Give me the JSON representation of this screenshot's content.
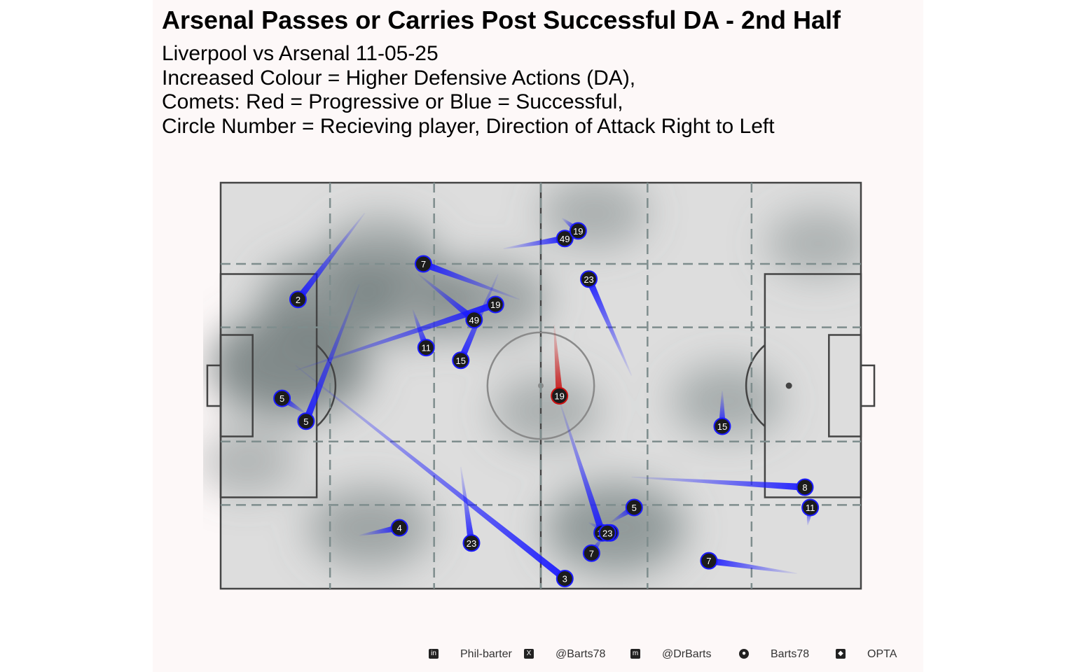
{
  "chart_data": {
    "type": "scatter",
    "title": "Arsenal Passes or Carries Post Successful DA - 2nd Half",
    "subtitle_lines": [
      "Liverpool vs Arsenal 11-05-25",
      "Increased Colour = Higher Defensive Actions (DA),",
      "Comets: Red = Progressive or Blue = Successful,",
      "Circle Number = Recieving player, Direction of Attack Right to Left"
    ],
    "xlim": [
      0,
      120
    ],
    "ylim": [
      0,
      80
    ],
    "colors": {
      "successful": "#1a1aff",
      "progressive": "#cc1111",
      "pitch": "#dddddd",
      "density": "#6b7777",
      "background": "#fdf8f8"
    },
    "density_centers": [
      {
        "x": 13,
        "y": 44,
        "w": 1.0
      },
      {
        "x": 20,
        "y": 57,
        "w": 0.7
      },
      {
        "x": 35,
        "y": 57,
        "w": 0.6
      },
      {
        "x": 50,
        "y": 57,
        "w": 0.55
      },
      {
        "x": 30,
        "y": 66,
        "w": 0.45
      },
      {
        "x": 70,
        "y": 74,
        "w": 0.35
      },
      {
        "x": 61,
        "y": 35,
        "w": 0.35
      },
      {
        "x": 74,
        "y": 12,
        "w": 0.75
      },
      {
        "x": 28,
        "y": 12,
        "w": 0.55
      },
      {
        "x": 95,
        "y": 37,
        "w": 0.4
      },
      {
        "x": 112,
        "y": 68,
        "w": 0.3
      },
      {
        "x": 5,
        "y": 25,
        "w": 0.25
      }
    ],
    "comets": [
      {
        "x": 14.5,
        "y": 57,
        "x2": 27,
        "y2": 74,
        "type": "successful",
        "label": "2"
      },
      {
        "x": 38,
        "y": 64,
        "x2": 56,
        "y2": 57,
        "type": "successful",
        "label": "7"
      },
      {
        "x": 51.5,
        "y": 56,
        "x2": 14,
        "y2": 43,
        "type": "successful",
        "label": "19"
      },
      {
        "x": 47.5,
        "y": 53,
        "x2": 37,
        "y2": 62,
        "type": "successful",
        "label": "49"
      },
      {
        "x": 38.5,
        "y": 47.5,
        "x2": 36,
        "y2": 55,
        "type": "successful",
        "label": "11"
      },
      {
        "x": 45,
        "y": 45,
        "x2": 52,
        "y2": 62,
        "type": "successful",
        "label": "15"
      },
      {
        "x": 11.5,
        "y": 37.5,
        "x2": 16,
        "y2": 34.5,
        "type": "successful",
        "label": "5"
      },
      {
        "x": 16,
        "y": 33,
        "x2": 26,
        "y2": 60,
        "type": "successful",
        "label": "5"
      },
      {
        "x": 33.5,
        "y": 12,
        "x2": 26,
        "y2": 10.5,
        "type": "successful",
        "label": "4"
      },
      {
        "x": 47,
        "y": 9,
        "x2": 45,
        "y2": 24,
        "type": "successful",
        "label": "23"
      },
      {
        "x": 64.5,
        "y": 2,
        "x2": 14,
        "y2": 44,
        "type": "successful",
        "label": "3"
      },
      {
        "x": 64.5,
        "y": 69,
        "x2": 53,
        "y2": 67,
        "type": "successful",
        "label": "49"
      },
      {
        "x": 67,
        "y": 70.5,
        "x2": 64,
        "y2": 73,
        "type": "successful",
        "label": "19"
      },
      {
        "x": 69,
        "y": 61,
        "x2": 77,
        "y2": 42,
        "type": "successful",
        "label": "23"
      },
      {
        "x": 63.5,
        "y": 38,
        "x2": 62.5,
        "y2": 52,
        "type": "progressive",
        "label": "19"
      },
      {
        "x": 71.5,
        "y": 11,
        "x2": 63.5,
        "y2": 37,
        "type": "successful",
        "label": "17"
      },
      {
        "x": 73,
        "y": 11,
        "x2": 69,
        "y2": 13,
        "type": "successful",
        "label": "28"
      },
      {
        "x": 72.5,
        "y": 11,
        "x2": 71,
        "y2": 11,
        "type": "successful",
        "label": "23"
      },
      {
        "x": 77.5,
        "y": 16,
        "x2": 73,
        "y2": 13,
        "type": "successful",
        "label": "5"
      },
      {
        "x": 69.5,
        "y": 7,
        "x2": 71.5,
        "y2": 10,
        "type": "successful",
        "label": "7"
      },
      {
        "x": 94,
        "y": 32,
        "x2": 94,
        "y2": 39,
        "type": "successful",
        "label": "15"
      },
      {
        "x": 109.5,
        "y": 20,
        "x2": 77,
        "y2": 22,
        "type": "successful",
        "label": "8"
      },
      {
        "x": 110.5,
        "y": 16,
        "x2": 110,
        "y2": 12.5,
        "type": "successful",
        "label": "11"
      },
      {
        "x": 91.5,
        "y": 5.5,
        "x2": 108,
        "y2": 3,
        "type": "successful",
        "label": "7"
      }
    ]
  },
  "footer": {
    "items": [
      {
        "icon": "linkedin-icon",
        "glyph": "in",
        "text": "Phil-barter"
      },
      {
        "icon": "x-icon",
        "glyph": "X",
        "text": "@Barts78"
      },
      {
        "icon": "mastodon-icon",
        "glyph": "m",
        "text": "@DrBarts"
      },
      {
        "icon": "github-icon",
        "glyph": "●",
        "text": "Barts78"
      },
      {
        "icon": "dropbox-icon",
        "glyph": "◆",
        "text": "OPTA"
      }
    ]
  }
}
